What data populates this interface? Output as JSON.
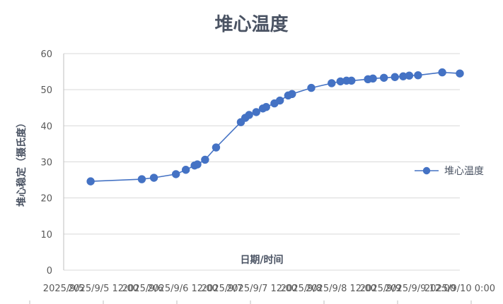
{
  "chart_data": {
    "type": "line",
    "title": "堆心温度",
    "xlabel": "日期/时间",
    "ylabel": "堆心稳定（摄氏度）",
    "ylim": [
      0,
      60
    ],
    "yticks": [
      "0",
      "10",
      "20",
      "30",
      "40",
      "50",
      "60"
    ],
    "xlim": [
      "2025/9/5 00:00",
      "2025/9/10 00:00"
    ],
    "xtick_labels": [
      "2025/9/5",
      "2025/9/5 12:00",
      "2025/9/6",
      "2025/9/6 12:00",
      "2025/9/7",
      "2025/9/7 12:00",
      "2025/9/8",
      "2025/9/8 12:00",
      "2025/9/9",
      "2025/9/9 12:00",
      "2025/9/10 0:00"
    ],
    "grid": "horizontal",
    "legend": "right",
    "series": [
      {
        "name": "堆心温度",
        "color": "#4472c4",
        "points": [
          {
            "x": "2025/9/5 08:10",
            "y": 24.6
          },
          {
            "x": "2025/9/5 23:40",
            "y": 25.2
          },
          {
            "x": "2025/9/6 03:20",
            "y": 25.6
          },
          {
            "x": "2025/9/6 10:00",
            "y": 26.6
          },
          {
            "x": "2025/9/6 13:00",
            "y": 27.8
          },
          {
            "x": "2025/9/6 15:40",
            "y": 29.0
          },
          {
            "x": "2025/9/6 16:30",
            "y": 29.3
          },
          {
            "x": "2025/9/6 18:50",
            "y": 30.6
          },
          {
            "x": "2025/9/6 22:10",
            "y": 34.0
          },
          {
            "x": "2025/9/7 05:40",
            "y": 41.0
          },
          {
            "x": "2025/9/7 07:00",
            "y": 42.2
          },
          {
            "x": "2025/9/7 08:10",
            "y": 43.0
          },
          {
            "x": "2025/9/7 10:20",
            "y": 43.8
          },
          {
            "x": "2025/9/7 12:20",
            "y": 44.8
          },
          {
            "x": "2025/9/7 13:20",
            "y": 45.2
          },
          {
            "x": "2025/9/7 15:50",
            "y": 46.2
          },
          {
            "x": "2025/9/7 17:30",
            "y": 47.0
          },
          {
            "x": "2025/9/7 20:00",
            "y": 48.4
          },
          {
            "x": "2025/9/7 21:10",
            "y": 48.8
          },
          {
            "x": "2025/9/8 03:00",
            "y": 50.5
          },
          {
            "x": "2025/9/8 09:10",
            "y": 51.8
          },
          {
            "x": "2025/9/8 11:50",
            "y": 52.3
          },
          {
            "x": "2025/9/8 13:40",
            "y": 52.5
          },
          {
            "x": "2025/9/8 15:10",
            "y": 52.5
          },
          {
            "x": "2025/9/8 20:10",
            "y": 52.9
          },
          {
            "x": "2025/9/8 21:40",
            "y": 53.1
          },
          {
            "x": "2025/9/9 01:00",
            "y": 53.3
          },
          {
            "x": "2025/9/9 04:20",
            "y": 53.5
          },
          {
            "x": "2025/9/9 06:50",
            "y": 53.7
          },
          {
            "x": "2025/9/9 08:40",
            "y": 53.9
          },
          {
            "x": "2025/9/9 11:20",
            "y": 54.0
          },
          {
            "x": "2025/9/9 18:40",
            "y": 54.8
          },
          {
            "x": "2025/9/9 24:00",
            "y": 54.5
          }
        ]
      }
    ]
  }
}
